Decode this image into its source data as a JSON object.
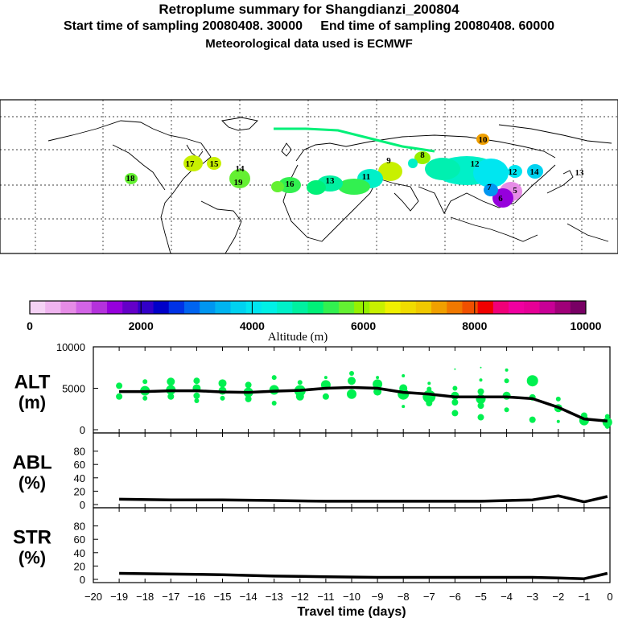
{
  "header": {
    "title": "Retroplume summary for Shangdianzi_200804",
    "sampling": "Start time of sampling 20080408. 30000     End time of sampling 20080408. 60000",
    "met": "Meteorological data used is ECMWF"
  },
  "colorbar": {
    "ticks": [
      "0",
      "2000",
      "4000",
      "6000",
      "8000",
      "10000"
    ],
    "label": "Altitude (m)",
    "colors": [
      "#f5d2f5",
      "#efb4ef",
      "#e68ce6",
      "#d264e6",
      "#b432dc",
      "#9600dc",
      "#6400c8",
      "#3200c8",
      "#0000c8",
      "#0032e6",
      "#0064f0",
      "#0096f0",
      "#00b4f0",
      "#00d2f0",
      "#00e6f0",
      "#00f0e6",
      "#00f0c8",
      "#00f0a0",
      "#00f078",
      "#32f050",
      "#64f032",
      "#96f000",
      "#c8f000",
      "#f0f000",
      "#f0dc00",
      "#f0c800",
      "#f0a000",
      "#f07800",
      "#f05000",
      "#f00000",
      "#f00078",
      "#f000a0",
      "#e60096",
      "#c80096",
      "#a00078",
      "#780064"
    ]
  },
  "chart_data": {
    "type": "line",
    "xlabel": "Travel time (days)",
    "x_ticks": [
      "-20",
      "-19",
      "-18",
      "-17",
      "-16",
      "-15",
      "-14",
      "-13",
      "-12",
      "-11",
      "-10",
      "-9",
      "-8",
      "-7",
      "-6",
      "-5",
      "-4",
      "-3",
      "-2",
      "-1",
      "0"
    ],
    "xlim": [
      -20,
      0
    ],
    "panels": [
      {
        "label_line1": "ALT",
        "label_line2": "(m)",
        "ylim": [
          0,
          10000
        ],
        "y_ticks": [
          "0",
          "5000",
          "10000"
        ],
        "median_x": [
          -19,
          -18,
          -17,
          -16,
          -15,
          -14,
          -13,
          -12,
          -11,
          -10,
          -9,
          -8,
          -7,
          -6,
          -5,
          -4,
          -3,
          -2,
          -1,
          -0.1
        ],
        "median_y": [
          4600,
          4600,
          4700,
          4700,
          4550,
          4500,
          4650,
          4750,
          5000,
          5100,
          5000,
          4500,
          4300,
          3950,
          3950,
          3950,
          3750,
          2700,
          1300,
          1050
        ],
        "dots": [
          {
            "x": -19,
            "y": 5300,
            "s": 4
          },
          {
            "x": -19,
            "y": 4000,
            "s": 4
          },
          {
            "x": -18,
            "y": 5800,
            "s": 3
          },
          {
            "x": -18,
            "y": 4700,
            "s": 6
          },
          {
            "x": -18,
            "y": 3800,
            "s": 3
          },
          {
            "x": -17,
            "y": 5800,
            "s": 5
          },
          {
            "x": -17,
            "y": 4800,
            "s": 6
          },
          {
            "x": -17,
            "y": 4000,
            "s": 4
          },
          {
            "x": -16,
            "y": 5900,
            "s": 4
          },
          {
            "x": -16,
            "y": 5000,
            "s": 5
          },
          {
            "x": -16,
            "y": 4100,
            "s": 4
          },
          {
            "x": -16,
            "y": 3500,
            "s": 3
          },
          {
            "x": -15,
            "y": 5600,
            "s": 5
          },
          {
            "x": -15,
            "y": 4700,
            "s": 5
          },
          {
            "x": -15,
            "y": 3800,
            "s": 3
          },
          {
            "x": -14,
            "y": 5400,
            "s": 4
          },
          {
            "x": -14,
            "y": 4500,
            "s": 6
          },
          {
            "x": -14,
            "y": 3700,
            "s": 4
          },
          {
            "x": -13,
            "y": 6300,
            "s": 3
          },
          {
            "x": -13,
            "y": 4800,
            "s": 6
          },
          {
            "x": -13,
            "y": 3200,
            "s": 3
          },
          {
            "x": -12,
            "y": 5700,
            "s": 3
          },
          {
            "x": -12,
            "y": 4700,
            "s": 7
          },
          {
            "x": -12,
            "y": 4000,
            "s": 5
          },
          {
            "x": -11,
            "y": 6300,
            "s": 2
          },
          {
            "x": -11,
            "y": 5400,
            "s": 6
          },
          {
            "x": -11,
            "y": 4000,
            "s": 4
          },
          {
            "x": -10,
            "y": 6800,
            "s": 3
          },
          {
            "x": -10,
            "y": 5900,
            "s": 5
          },
          {
            "x": -10,
            "y": 4300,
            "s": 6
          },
          {
            "x": -9,
            "y": 6300,
            "s": 2
          },
          {
            "x": -9,
            "y": 5500,
            "s": 6
          },
          {
            "x": -9,
            "y": 4600,
            "s": 5
          },
          {
            "x": -8,
            "y": 6500,
            "s": 2
          },
          {
            "x": -8,
            "y": 5000,
            "s": 5
          },
          {
            "x": -8,
            "y": 4300,
            "s": 7
          },
          {
            "x": -8,
            "y": 2800,
            "s": 2
          },
          {
            "x": -7,
            "y": 5600,
            "s": 2
          },
          {
            "x": -7,
            "y": 4900,
            "s": 3
          },
          {
            "x": -7,
            "y": 4000,
            "s": 8
          },
          {
            "x": -7,
            "y": 3200,
            "s": 4
          },
          {
            "x": -6,
            "y": 7300,
            "s": 1
          },
          {
            "x": -6,
            "y": 5000,
            "s": 3
          },
          {
            "x": -6,
            "y": 4100,
            "s": 5
          },
          {
            "x": -6,
            "y": 3300,
            "s": 4
          },
          {
            "x": -6,
            "y": 2000,
            "s": 4
          },
          {
            "x": -5,
            "y": 7500,
            "s": 1
          },
          {
            "x": -5,
            "y": 6000,
            "s": 2
          },
          {
            "x": -5,
            "y": 4600,
            "s": 4
          },
          {
            "x": -5,
            "y": 3700,
            "s": 6
          },
          {
            "x": -5,
            "y": 2900,
            "s": 4
          },
          {
            "x": -5,
            "y": 1500,
            "s": 4
          },
          {
            "x": -4,
            "y": 7200,
            "s": 2
          },
          {
            "x": -4,
            "y": 5900,
            "s": 3
          },
          {
            "x": -4,
            "y": 4100,
            "s": 5
          },
          {
            "x": -4,
            "y": 2400,
            "s": 3
          },
          {
            "x": -3,
            "y": 5900,
            "s": 7
          },
          {
            "x": -3,
            "y": 3900,
            "s": 4
          },
          {
            "x": -3,
            "y": 1200,
            "s": 4
          },
          {
            "x": -2,
            "y": 3700,
            "s": 3
          },
          {
            "x": -2,
            "y": 2600,
            "s": 5
          },
          {
            "x": -2,
            "y": 1000,
            "s": 2
          },
          {
            "x": -1,
            "y": 1700,
            "s": 4
          },
          {
            "x": -1,
            "y": 1100,
            "s": 6
          },
          {
            "x": -0.1,
            "y": 1600,
            "s": 3
          },
          {
            "x": -0.1,
            "y": 900,
            "s": 6
          },
          {
            "x": -0.1,
            "y": 400,
            "s": 3
          }
        ]
      },
      {
        "label_line1": "ABL",
        "label_line2": "(%)",
        "ylim": [
          0,
          100
        ],
        "y_ticks": [
          "0",
          "20",
          "40",
          "60",
          "80"
        ],
        "median_x": [
          -19,
          -17,
          -15,
          -13,
          -11,
          -9,
          -7,
          -5,
          -3,
          -2,
          -1,
          -0.1
        ],
        "median_y": [
          8,
          7,
          7,
          6,
          5,
          5,
          5,
          5,
          7,
          13,
          4,
          12
        ]
      },
      {
        "label_line1": "STR",
        "label_line2": "(%)",
        "ylim": [
          0,
          100
        ],
        "y_ticks": [
          "0",
          "20",
          "40",
          "60",
          "80"
        ],
        "median_x": [
          -19,
          -17,
          -15,
          -13,
          -11,
          -9,
          -7,
          -5,
          -3,
          -2,
          -1,
          -0.1
        ],
        "median_y": [
          9,
          8,
          7,
          5,
          4,
          3,
          3,
          3,
          3,
          2,
          1,
          9
        ]
      }
    ],
    "dot_color": "#00f050"
  },
  "map": {
    "labels": [
      {
        "t": "17",
        "c": "#c8f000"
      },
      {
        "t": "15",
        "c": "#c8f000"
      },
      {
        "t": "19",
        "c": "#64f032"
      },
      {
        "t": "18",
        "c": "#64f032"
      },
      {
        "t": "14",
        "c": "#96f000"
      },
      {
        "t": "16",
        "c": "#32f050"
      },
      {
        "t": "13",
        "c": "#00f0a0"
      },
      {
        "t": "10",
        "c": "#f0a000"
      },
      {
        "t": "9",
        "c": "#f0f000"
      },
      {
        "t": "12",
        "c": "#00f0c8"
      },
      {
        "t": "11",
        "c": "#00f0c8"
      },
      {
        "t": "8",
        "c": "#96f000"
      },
      {
        "t": "7",
        "c": "#00d2f0"
      },
      {
        "t": "6",
        "c": "#9600dc"
      },
      {
        "t": "5",
        "c": "#e68ce6"
      },
      {
        "t": "14",
        "c": "#00e6f0"
      },
      {
        "t": "13",
        "c": "#00f0c8"
      },
      {
        "t": "12",
        "c": "#00f0e6"
      }
    ]
  }
}
